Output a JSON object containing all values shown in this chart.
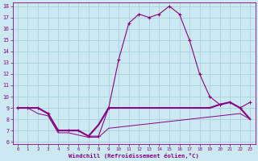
{
  "xlabel": "Windchill (Refroidissement éolien,°C)",
  "background_color": "#cce8f0",
  "grid_color": "#aad4e0",
  "line_color": "#880088",
  "hours": [
    0,
    1,
    2,
    3,
    4,
    5,
    6,
    7,
    8,
    9,
    10,
    11,
    12,
    13,
    14,
    15,
    16,
    17,
    18,
    19,
    20,
    21,
    22,
    23
  ],
  "temp": [
    9.0,
    9.0,
    9.0,
    8.5,
    7.0,
    7.0,
    7.0,
    6.5,
    6.5,
    9.0,
    13.3,
    16.5,
    17.3,
    17.0,
    17.3,
    18.0,
    17.3,
    15.0,
    12.0,
    10.0,
    9.3,
    9.5,
    9.0,
    9.5
  ],
  "windchill": [
    9.0,
    9.0,
    9.0,
    8.5,
    7.0,
    7.0,
    7.0,
    6.5,
    7.5,
    9.0,
    9.0,
    9.0,
    9.0,
    9.0,
    9.0,
    9.0,
    9.0,
    9.0,
    9.0,
    9.0,
    9.3,
    9.5,
    9.0,
    8.0
  ],
  "minline": [
    9.0,
    9.0,
    8.5,
    8.3,
    6.8,
    6.8,
    6.6,
    6.4,
    6.4,
    7.2,
    7.3,
    7.4,
    7.5,
    7.6,
    7.7,
    7.8,
    7.9,
    8.0,
    8.1,
    8.2,
    8.3,
    8.4,
    8.5,
    8.0
  ],
  "ylim": [
    6,
    18
  ],
  "yticks": [
    6,
    7,
    8,
    9,
    10,
    11,
    12,
    13,
    14,
    15,
    16,
    17,
    18
  ],
  "xlim": [
    0,
    23
  ],
  "xticks": [
    0,
    1,
    2,
    3,
    4,
    5,
    6,
    7,
    8,
    9,
    10,
    11,
    12,
    13,
    14,
    15,
    16,
    17,
    18,
    19,
    20,
    21,
    22,
    23
  ]
}
